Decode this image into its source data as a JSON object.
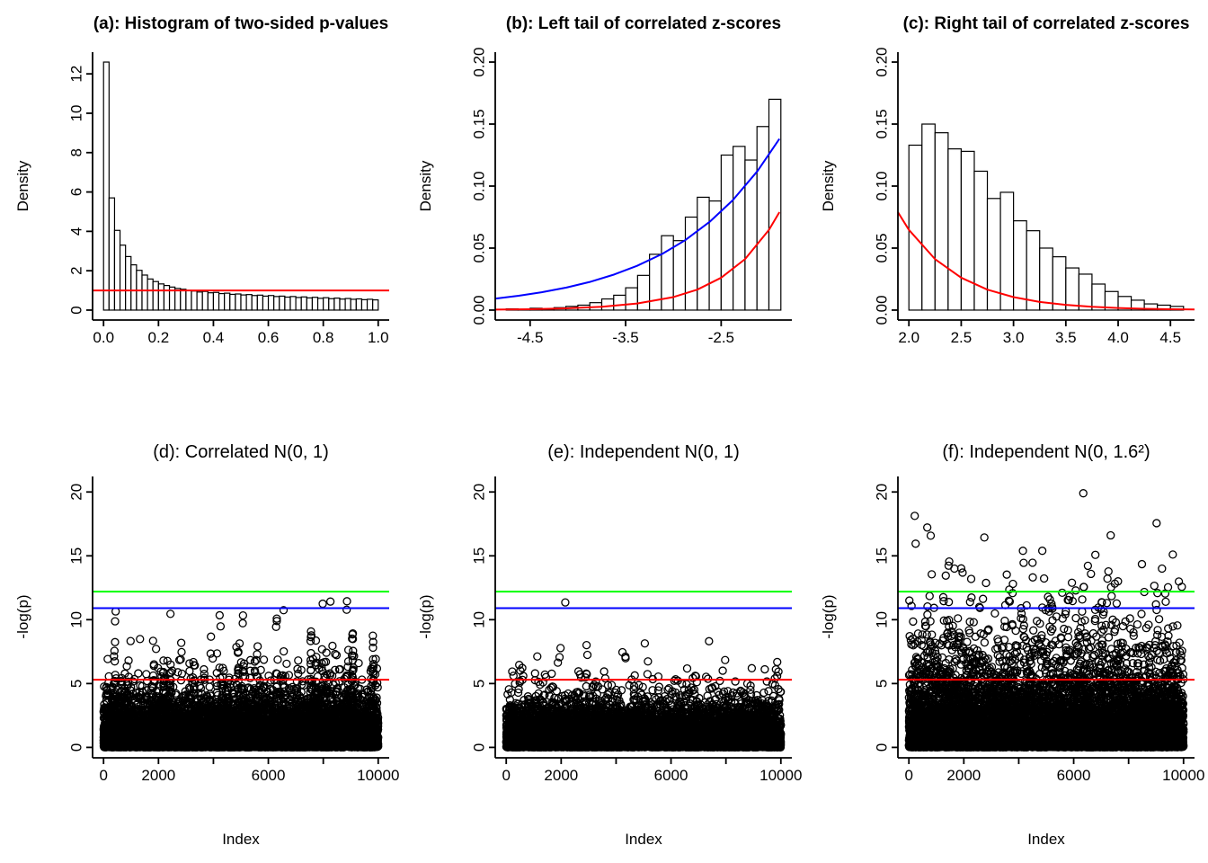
{
  "colors": {
    "red": "#ff0000",
    "blue": "#0000ff",
    "green": "#00ff00",
    "axis": "#000000",
    "bar_fill": "#ffffff"
  },
  "chart_data": [
    {
      "id": "a",
      "type": "bar",
      "title": "(a): Histogram of two-sided p-values",
      "xlabel": "",
      "ylabel": "Density",
      "xlim": [
        0,
        1
      ],
      "ylim": [
        0,
        12.6
      ],
      "xticks": [
        0.0,
        0.2,
        0.4,
        0.6,
        0.8,
        1.0
      ],
      "xtick_labels": [
        "0.0",
        "0.2",
        "0.4",
        "0.6",
        "0.8",
        "1.0"
      ],
      "yticks": [
        0,
        2,
        4,
        6,
        8,
        10,
        12
      ],
      "ytick_labels": [
        "0",
        "2",
        "4",
        "6",
        "8",
        "10",
        "12"
      ],
      "bins": {
        "start": 0,
        "width": 0.02,
        "heights": [
          12.6,
          5.7,
          4.05,
          3.3,
          2.72,
          2.3,
          2.02,
          1.78,
          1.58,
          1.45,
          1.33,
          1.25,
          1.17,
          1.1,
          1.06,
          1.0,
          0.97,
          0.92,
          0.95,
          0.88,
          0.9,
          0.84,
          0.86,
          0.8,
          0.82,
          0.77,
          0.79,
          0.74,
          0.76,
          0.71,
          0.74,
          0.69,
          0.71,
          0.66,
          0.69,
          0.64,
          0.67,
          0.62,
          0.65,
          0.6,
          0.63,
          0.58,
          0.61,
          0.56,
          0.59,
          0.55,
          0.57,
          0.53,
          0.55,
          0.52
        ]
      },
      "hlines": [
        {
          "y": 1.0,
          "color": "#ff0000"
        }
      ]
    },
    {
      "id": "b",
      "type": "bar",
      "title": "(b): Left tail of correlated z-scores",
      "xlabel": "",
      "ylabel": "Density",
      "xlim": [
        -4.75,
        -1.875
      ],
      "ylim": [
        0,
        0.2
      ],
      "xticks": [
        -4.5,
        -3.5,
        -2.5
      ],
      "xtick_labels": [
        "-4.5",
        "-3.5",
        "-2.5"
      ],
      "yticks": [
        0.0,
        0.05,
        0.1,
        0.15,
        0.2
      ],
      "ytick_labels": [
        "0.00",
        "0.05",
        "0.10",
        "0.15",
        "0.20"
      ],
      "bins": {
        "start": -4.75,
        "width": 0.125,
        "heights": [
          0.001,
          0.0005,
          0.0015,
          0.001,
          0.002,
          0.003,
          0.004,
          0.006,
          0.009,
          0.012,
          0.018,
          0.028,
          0.045,
          0.06,
          0.056,
          0.075,
          0.091,
          0.088,
          0.125,
          0.132,
          0.121,
          0.148,
          0.17
        ]
      },
      "curves": [
        {
          "color": "#0000ff",
          "points": [
            [
              -4.86,
              0.0093
            ],
            [
              -4.62,
              0.0116
            ],
            [
              -4.38,
              0.0144
            ],
            [
              -4.12,
              0.0182
            ],
            [
              -3.88,
              0.0226
            ],
            [
              -3.62,
              0.0287
            ],
            [
              -3.38,
              0.0357
            ],
            [
              -3.12,
              0.0452
            ],
            [
              -2.88,
              0.0562
            ],
            [
              -2.62,
              0.0712
            ],
            [
              -2.38,
              0.0885
            ],
            [
              -2.12,
              0.1121
            ],
            [
              -1.89,
              0.1381
            ]
          ]
        },
        {
          "color": "#ff0000",
          "points": [
            [
              -4.86,
              0.0004
            ],
            [
              -4.5,
              0.0007
            ],
            [
              -4.12,
              0.0014
            ],
            [
              -3.75,
              0.0027
            ],
            [
              -3.38,
              0.0053
            ],
            [
              -3.0,
              0.0105
            ],
            [
              -2.75,
              0.0165
            ],
            [
              -2.5,
              0.0261
            ],
            [
              -2.25,
              0.0411
            ],
            [
              -2.0,
              0.0647
            ],
            [
              -1.89,
              0.079
            ]
          ]
        }
      ]
    },
    {
      "id": "c",
      "type": "bar",
      "title": "(c): Right tail of correlated z-scores",
      "xlabel": "",
      "ylabel": "Density",
      "xlim": [
        2.0,
        4.625
      ],
      "ylim": [
        0,
        0.2
      ],
      "xticks": [
        2.0,
        2.5,
        3.0,
        3.5,
        4.0,
        4.5
      ],
      "xtick_labels": [
        "2.0",
        "2.5",
        "3.0",
        "3.5",
        "4.0",
        "4.5"
      ],
      "yticks": [
        0.0,
        0.05,
        0.1,
        0.15,
        0.2
      ],
      "ytick_labels": [
        "0.00",
        "0.05",
        "0.10",
        "0.15",
        "0.20"
      ],
      "bins": {
        "start": 2.0,
        "width": 0.125,
        "heights": [
          0.133,
          0.15,
          0.143,
          0.13,
          0.128,
          0.112,
          0.09,
          0.095,
          0.072,
          0.064,
          0.05,
          0.043,
          0.034,
          0.029,
          0.021,
          0.015,
          0.011,
          0.008,
          0.005,
          0.004,
          0.003
        ]
      },
      "curves": [
        {
          "color": "#ff0000",
          "points": [
            [
              1.895,
              0.079
            ],
            [
              2.0,
              0.0647
            ],
            [
              2.25,
              0.0411
            ],
            [
              2.5,
              0.0261
            ],
            [
              2.75,
              0.0165
            ],
            [
              3.0,
              0.0105
            ],
            [
              3.25,
              0.0066
            ],
            [
              3.5,
              0.0042
            ],
            [
              3.75,
              0.0027
            ],
            [
              4.0,
              0.0017
            ],
            [
              4.25,
              0.0011
            ],
            [
              4.5,
              0.0007
            ],
            [
              4.73,
              0.0005
            ]
          ]
        }
      ]
    },
    {
      "id": "d",
      "type": "scatter",
      "title": "(d): Correlated N(0, 1)",
      "xlabel": "Index",
      "ylabel": "-log(p)",
      "xlim": [
        0,
        10000
      ],
      "ylim": [
        0,
        20.4
      ],
      "xticks": [
        0,
        2000,
        4000,
        6000,
        8000,
        10000
      ],
      "xtick_labels": [
        "0",
        "2000",
        "",
        "6000",
        "",
        "10000"
      ],
      "yticks": [
        0,
        5,
        10,
        15,
        20
      ],
      "ytick_labels": [
        "0",
        "5",
        "10",
        "15",
        "20"
      ],
      "hlines": [
        {
          "y": 5.3,
          "color": "#ff0000"
        },
        {
          "y": 10.9,
          "color": "#0000ff"
        },
        {
          "y": 12.2,
          "color": "#00ff00"
        }
      ],
      "scatter": {
        "n": 10000,
        "seed": 101,
        "sigma": 1.2,
        "rho": 0.55,
        "block": 40,
        "ycap": 11.45,
        "extra_points": [
          [
            7980,
            11.25
          ],
          [
            8260,
            11.42
          ]
        ]
      }
    },
    {
      "id": "e",
      "type": "scatter",
      "title": "(e): Independent N(0, 1)",
      "xlabel": "Index",
      "ylabel": "-log(p)",
      "xlim": [
        0,
        10000
      ],
      "ylim": [
        0,
        20.4
      ],
      "xticks": [
        0,
        2000,
        4000,
        6000,
        8000,
        10000
      ],
      "xtick_labels": [
        "0",
        "2000",
        "",
        "6000",
        "",
        "10000"
      ],
      "yticks": [
        0,
        5,
        10,
        15,
        20
      ],
      "ytick_labels": [
        "0",
        "5",
        "10",
        "15",
        "20"
      ],
      "hlines": [
        {
          "y": 5.3,
          "color": "#ff0000"
        },
        {
          "y": 10.9,
          "color": "#0000ff"
        },
        {
          "y": 12.2,
          "color": "#00ff00"
        }
      ],
      "scatter": {
        "n": 10000,
        "seed": 202,
        "sigma": 1.0,
        "rho": 0,
        "block": 0,
        "ycap": 8.8,
        "extra_points": [
          [
            2150,
            11.35
          ]
        ]
      }
    },
    {
      "id": "f",
      "type": "scatter",
      "title": "(f): Independent N(0, 1.6²)",
      "xlabel": "Index",
      "ylabel": "-log(p)",
      "xlim": [
        0,
        10000
      ],
      "ylim": [
        0,
        20.4
      ],
      "xticks": [
        0,
        2000,
        4000,
        6000,
        8000,
        10000
      ],
      "xtick_labels": [
        "0",
        "2000",
        "",
        "6000",
        "",
        "10000"
      ],
      "yticks": [
        0,
        5,
        10,
        15,
        20
      ],
      "ytick_labels": [
        "0",
        "5",
        "10",
        "15",
        "20"
      ],
      "hlines": [
        {
          "y": 5.3,
          "color": "#ff0000"
        },
        {
          "y": 10.9,
          "color": "#0000ff"
        },
        {
          "y": 12.2,
          "color": "#00ff00"
        }
      ],
      "scatter": {
        "n": 10000,
        "seed": 303,
        "sigma": 1.6,
        "rho": 0,
        "block": 0,
        "ycap": 20.3,
        "extra_points": [
          [
            6350,
            19.9
          ]
        ]
      }
    }
  ]
}
